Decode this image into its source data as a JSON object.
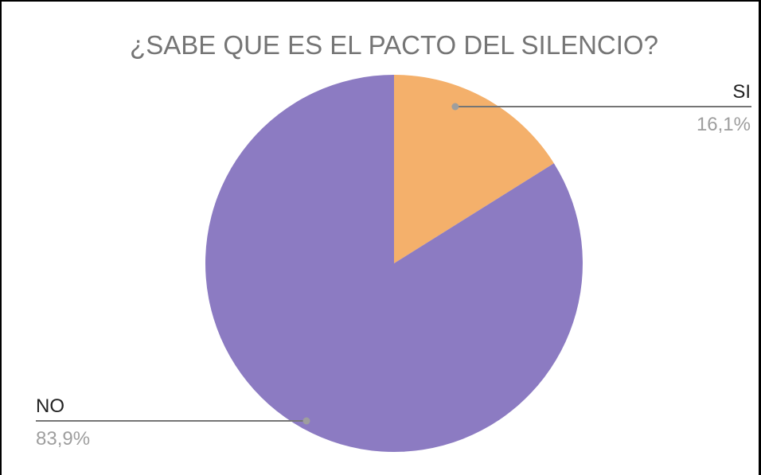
{
  "chart_data": {
    "type": "pie",
    "title": "¿SABE QUE ES EL PACTO DEL SILENCIO?",
    "slices": [
      {
        "label": "SI",
        "value": 16.1,
        "display": "16,1%",
        "color": "#f4b06b"
      },
      {
        "label": "NO",
        "value": 83.9,
        "display": "83,9%",
        "color": "#8c7bc2"
      }
    ],
    "legend": "none",
    "label_style": "leader-lines"
  }
}
